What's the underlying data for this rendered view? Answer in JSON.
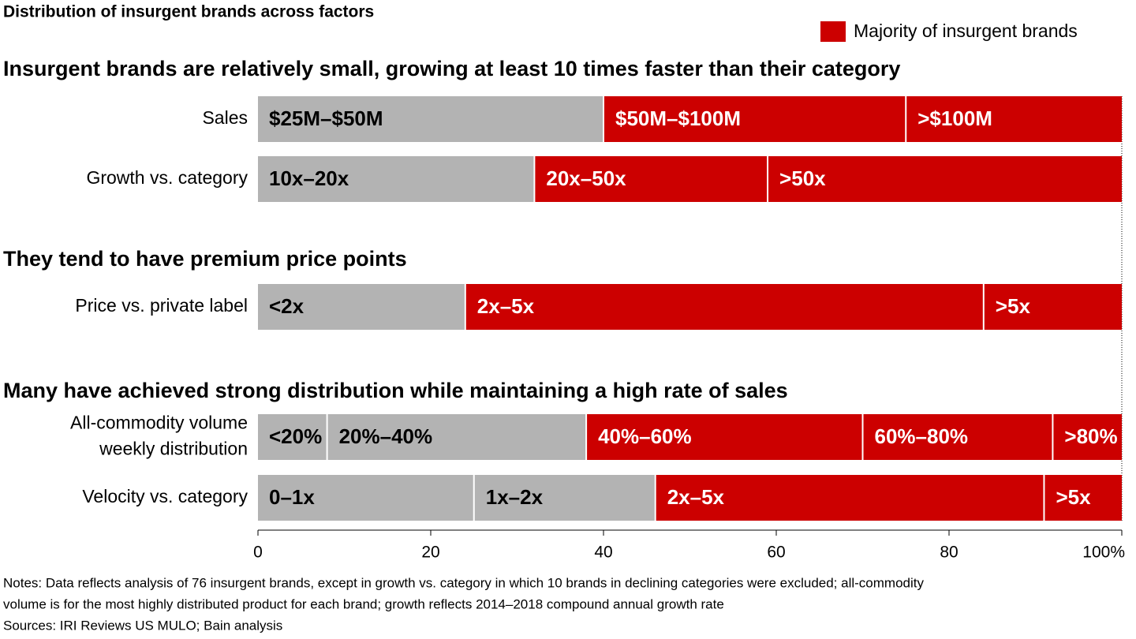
{
  "chart_data": {
    "type": "stacked-bar-horizontal",
    "title": "Distribution of insurgent brands across factors",
    "legend": {
      "label": "Majority of insurgent brands",
      "color": "#cc0000",
      "position": "top-right"
    },
    "xlim": [
      0,
      100
    ],
    "xticks": [
      0,
      20,
      40,
      60,
      80,
      {
        "value": 100,
        "label": "100%"
      }
    ],
    "groups": [
      {
        "heading": "Insurgent brands are relatively small, growing at least 10 times faster than their category",
        "rows": [
          {
            "label": [
              "Sales"
            ],
            "segments": [
              {
                "name": "$25M–$50M",
                "value": 40,
                "color": "#b3b3b3"
              },
              {
                "name": "$50M–$100M",
                "value": 35,
                "color": "#cc0000"
              },
              {
                "name": ">$100M",
                "value": 25,
                "color": "#cc0000"
              }
            ]
          },
          {
            "label": [
              "Growth vs. category"
            ],
            "segments": [
              {
                "name": "10x–20x",
                "value": 32,
                "color": "#b3b3b3"
              },
              {
                "name": "20x–50x",
                "value": 27,
                "color": "#cc0000"
              },
              {
                "name": ">50x",
                "value": 41,
                "color": "#cc0000"
              }
            ]
          }
        ]
      },
      {
        "heading": "They tend to have premium price points",
        "rows": [
          {
            "label": [
              "Price vs. private label"
            ],
            "segments": [
              {
                "name": "<2x",
                "value": 24,
                "color": "#b3b3b3"
              },
              {
                "name": "2x–5x",
                "value": 60,
                "color": "#cc0000"
              },
              {
                "name": ">5x",
                "value": 16,
                "color": "#cc0000"
              }
            ]
          }
        ]
      },
      {
        "heading": "Many have achieved strong distribution while maintaining a high rate of sales",
        "rows": [
          {
            "label": [
              "All-commodity volume",
              "weekly distribution"
            ],
            "segments": [
              {
                "name": "<20%",
                "value": 8,
                "color": "#b3b3b3"
              },
              {
                "name": "20%–40%",
                "value": 30,
                "color": "#b3b3b3"
              },
              {
                "name": "40%–60%",
                "value": 32,
                "color": "#cc0000"
              },
              {
                "name": "60%–80%",
                "value": 22,
                "color": "#cc0000"
              },
              {
                "name": ">80%",
                "value": 8,
                "color": "#cc0000"
              }
            ]
          },
          {
            "label": [
              "Velocity vs. category"
            ],
            "segments": [
              {
                "name": "0–1x",
                "value": 25,
                "color": "#b3b3b3"
              },
              {
                "name": "1x–2x",
                "value": 21,
                "color": "#b3b3b3"
              },
              {
                "name": "2x–5x",
                "value": 45,
                "color": "#cc0000"
              },
              {
                "name": ">5x",
                "value": 9,
                "color": "#cc0000"
              }
            ]
          }
        ]
      }
    ],
    "notes": [
      "Notes: Data reflects analysis of 76 insurgent brands, except in growth vs. category in which 10 brands in declining categories were excluded; all-commodity",
      "volume is for the most highly distributed product for each brand; growth reflects 2014–2018 compound annual growth rate",
      "Sources: IRI Reviews US MULO; Bain analysis"
    ]
  }
}
